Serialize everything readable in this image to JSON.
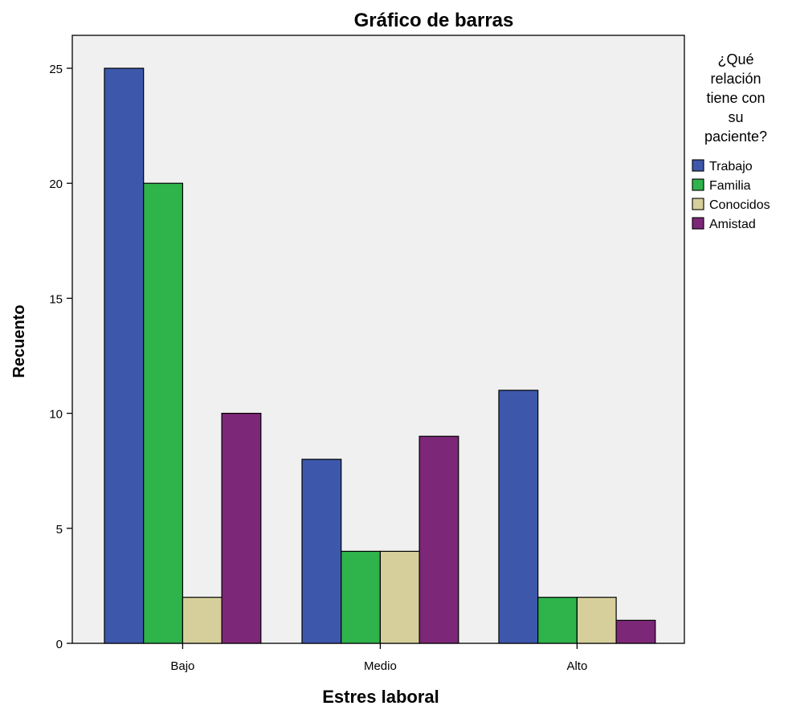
{
  "chart_data": {
    "type": "bar",
    "title": "Gráfico de barras",
    "xlabel": "Estres laboral",
    "ylabel": "Recuento",
    "categories": [
      "Bajo",
      "Medio",
      "Alto"
    ],
    "ylim": [
      0,
      25
    ],
    "yticks": [
      0,
      5,
      10,
      15,
      20,
      25
    ],
    "grid": false,
    "legend_title": "¿Qué relación tiene con su paciente?",
    "legend_title_lines": [
      "¿Qué",
      "relación",
      "tiene con",
      "su",
      "paciente?"
    ],
    "legend_position": "right",
    "series": [
      {
        "name": "Trabajo",
        "color": "#3d58ab",
        "values": [
          25,
          8,
          11
        ]
      },
      {
        "name": "Familia",
        "color": "#2fb34b",
        "values": [
          20,
          4,
          2
        ]
      },
      {
        "name": "Conocidos",
        "color": "#d6cf9b",
        "values": [
          2,
          4,
          2
        ]
      },
      {
        "name": "Amistad",
        "color": "#7d2778",
        "values": [
          10,
          9,
          1
        ]
      }
    ],
    "plot_background": "#f0f0f0"
  }
}
